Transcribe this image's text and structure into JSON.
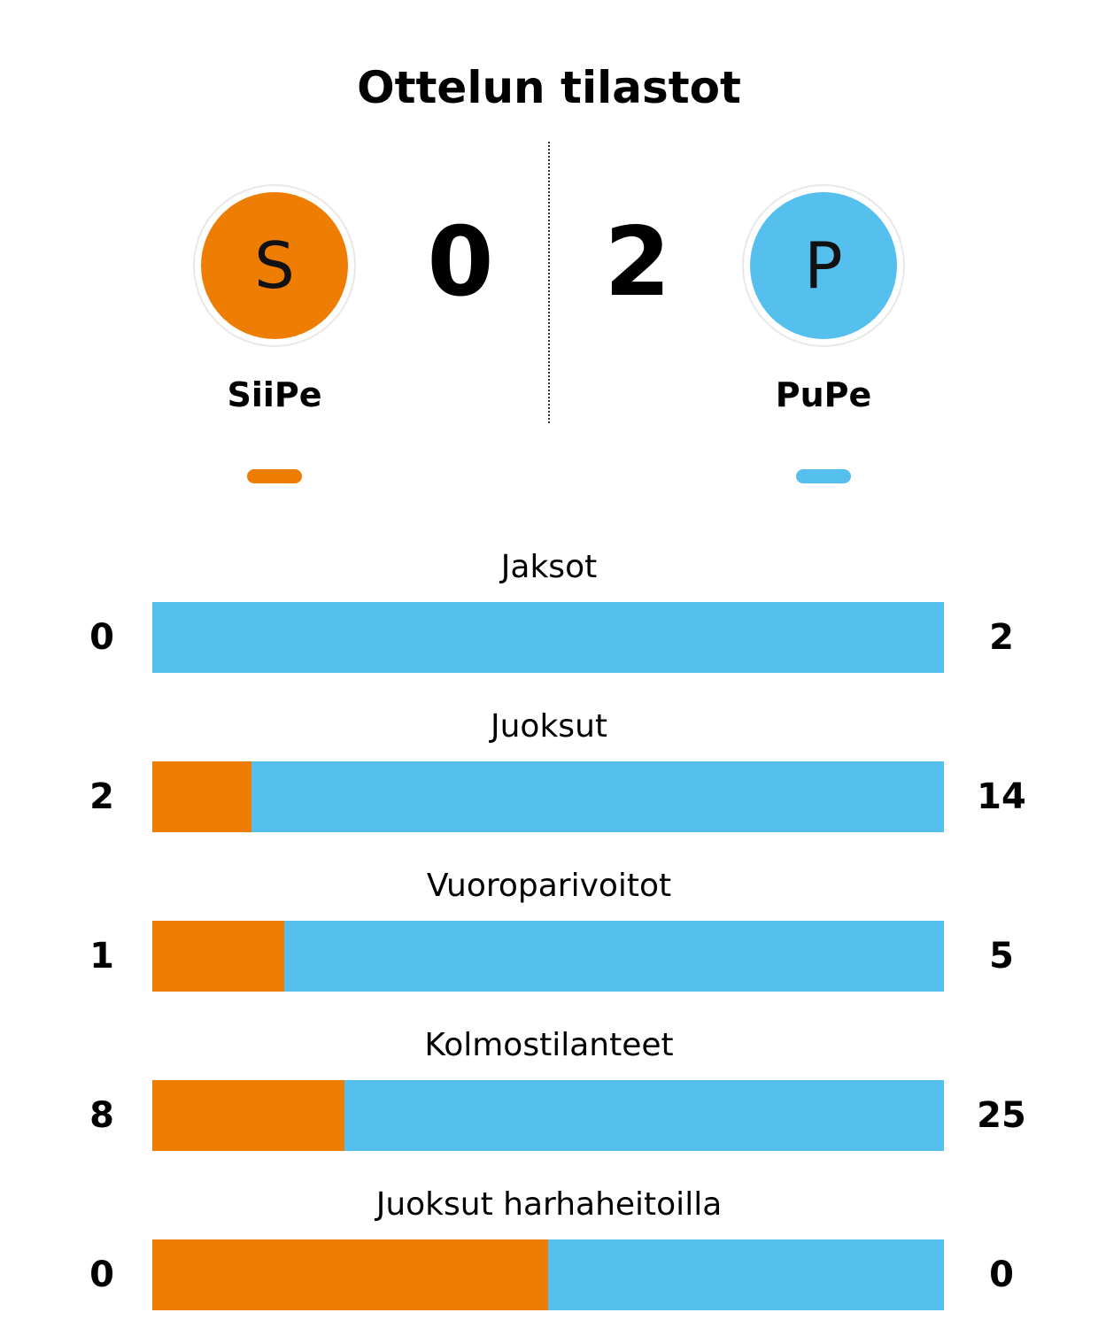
{
  "title": "Ottelun tilastot",
  "colors": {
    "home": "#EE7D03",
    "away": "#55C0EE"
  },
  "home": {
    "name": "SiiPe",
    "logo_letter": "S",
    "score": "0"
  },
  "away": {
    "name": "PuPe",
    "logo_letter": "P",
    "score": "2"
  },
  "chart_data": {
    "type": "bar",
    "orientation": "horizontal-stacked-share",
    "series": [
      {
        "name": "SiiPe",
        "values": [
          0,
          2,
          1,
          8,
          0
        ]
      },
      {
        "name": "PuPe",
        "values": [
          2,
          14,
          5,
          25,
          0
        ]
      }
    ],
    "categories": [
      "Jaksot",
      "Juoksut",
      "Vuoroparivoitot",
      "Kolmostilanteet",
      "Juoksut harhaheitoilla"
    ]
  }
}
